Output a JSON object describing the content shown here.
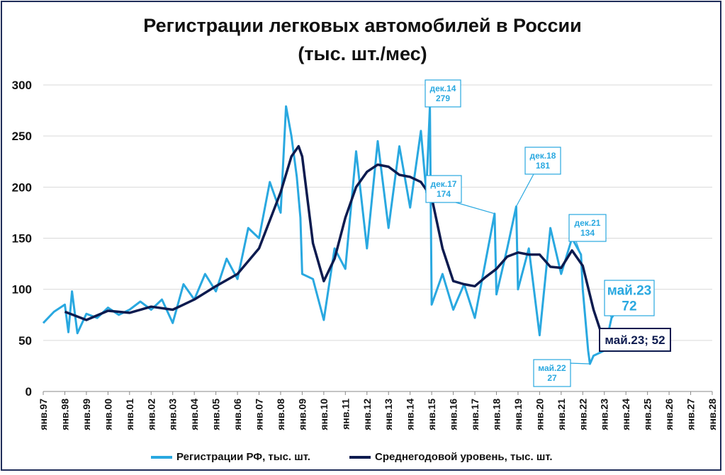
{
  "chart_data": {
    "type": "line",
    "title": "Регистрации легковых автомобилей в России",
    "subtitle": "(тыс. шт./мес)",
    "x_range": [
      "янв.97",
      "янв.28"
    ],
    "x_tick_labels": [
      "янв.97",
      "янв.98",
      "янв.99",
      "янв.00",
      "янв.01",
      "янв.02",
      "янв.03",
      "янв.04",
      "янв.05",
      "янв.06",
      "янв.07",
      "янв.08",
      "янв.09",
      "янв.10",
      "янв.11",
      "янв.12",
      "янв.13",
      "янв.14",
      "янв.15",
      "янв.16",
      "янв.17",
      "янв.18",
      "янв.19",
      "янв.20",
      "янв.21",
      "янв.22",
      "янв.23",
      "янв.24",
      "янв.25",
      "янв.26",
      "янв.27",
      "янв.28"
    ],
    "ylim": [
      0,
      300
    ],
    "y_ticks": [
      0,
      50,
      100,
      150,
      200,
      250,
      300
    ],
    "grid": true,
    "legend_position": "bottom",
    "series": [
      {
        "name": "Регистрации РФ, тыс. шт.",
        "color": "#29a8e0",
        "points": [
          [
            "янв.97",
            67
          ],
          [
            "июл.97",
            78
          ],
          [
            "янв.98",
            85
          ],
          [
            "мар.98",
            58
          ],
          [
            "май.98",
            98
          ],
          [
            "авг.98",
            57
          ],
          [
            "янв.99",
            76
          ],
          [
            "июл.99",
            72
          ],
          [
            "янв.00",
            82
          ],
          [
            "июл.00",
            75
          ],
          [
            "янв.01",
            80
          ],
          [
            "июл.01",
            88
          ],
          [
            "янв.02",
            80
          ],
          [
            "июл.02",
            90
          ],
          [
            "янв.03",
            67
          ],
          [
            "июл.03",
            105
          ],
          [
            "янв.04",
            90
          ],
          [
            "июл.04",
            115
          ],
          [
            "янв.05",
            98
          ],
          [
            "июл.05",
            130
          ],
          [
            "янв.06",
            110
          ],
          [
            "июл.06",
            160
          ],
          [
            "янв.07",
            150
          ],
          [
            "июл.07",
            205
          ],
          [
            "янв.08",
            175
          ],
          [
            "апр.08",
            279
          ],
          [
            "июл.08",
            250
          ],
          [
            "окт.08",
            210
          ],
          [
            "дек.08",
            170
          ],
          [
            "янв.09",
            115
          ],
          [
            "июл.09",
            110
          ],
          [
            "янв.10",
            70
          ],
          [
            "июл.10",
            140
          ],
          [
            "янв.11",
            120
          ],
          [
            "июл.11",
            235
          ],
          [
            "янв.12",
            140
          ],
          [
            "июл.12",
            245
          ],
          [
            "янв.13",
            160
          ],
          [
            "июл.13",
            240
          ],
          [
            "янв.14",
            180
          ],
          [
            "июл.14",
            255
          ],
          [
            "окт.14",
            195
          ],
          [
            "дек.14",
            279
          ],
          [
            "янв.15",
            85
          ],
          [
            "июл.15",
            115
          ],
          [
            "янв.16",
            80
          ],
          [
            "июл.16",
            105
          ],
          [
            "янв.17",
            72
          ],
          [
            "июл.17",
            128
          ],
          [
            "дек.17",
            174
          ],
          [
            "янв.18",
            95
          ],
          [
            "июл.18",
            140
          ],
          [
            "дек.18",
            181
          ],
          [
            "янв.19",
            100
          ],
          [
            "июл.19",
            140
          ],
          [
            "янв.20",
            55
          ],
          [
            "июл.20",
            160
          ],
          [
            "янв.21",
            115
          ],
          [
            "июл.21",
            150
          ],
          [
            "дек.21",
            134
          ],
          [
            "янв.22",
            100
          ],
          [
            "апр.22",
            40
          ],
          [
            "май.22",
            27
          ],
          [
            "июл.22",
            35
          ],
          [
            "янв.23",
            40
          ],
          [
            "май.23",
            72
          ],
          [
            "июл.23",
            77
          ]
        ]
      },
      {
        "name": "Среднегодовой уровень, тыс. шт.",
        "color": "#0d1b4f",
        "points": [
          [
            "янв.98",
            78
          ],
          [
            "янв.99",
            70
          ],
          [
            "янв.00",
            79
          ],
          [
            "янв.01",
            77
          ],
          [
            "янв.02",
            83
          ],
          [
            "янв.03",
            80
          ],
          [
            "янв.04",
            90
          ],
          [
            "янв.05",
            103
          ],
          [
            "янв.06",
            115
          ],
          [
            "янв.07",
            140
          ],
          [
            "янв.08",
            195
          ],
          [
            "июл.08",
            230
          ],
          [
            "ноя.08",
            240
          ],
          [
            "янв.09",
            230
          ],
          [
            "июл.09",
            145
          ],
          [
            "янв.10",
            108
          ],
          [
            "июл.10",
            130
          ],
          [
            "янв.11",
            170
          ],
          [
            "июл.11",
            200
          ],
          [
            "янв.12",
            215
          ],
          [
            "июл.12",
            222
          ],
          [
            "янв.13",
            220
          ],
          [
            "июл.13",
            212
          ],
          [
            "янв.14",
            210
          ],
          [
            "июл.14",
            205
          ],
          [
            "янв.15",
            190
          ],
          [
            "июл.15",
            140
          ],
          [
            "янв.16",
            108
          ],
          [
            "июл.16",
            105
          ],
          [
            "янв.17",
            103
          ],
          [
            "июл.17",
            112
          ],
          [
            "янв.18",
            120
          ],
          [
            "июл.18",
            132
          ],
          [
            "янв.19",
            136
          ],
          [
            "июл.19",
            134
          ],
          [
            "янв.20",
            134
          ],
          [
            "июл.20",
            122
          ],
          [
            "янв.21",
            121
          ],
          [
            "июл.21",
            138
          ],
          [
            "янв.22",
            123
          ],
          [
            "июл.22",
            80
          ],
          [
            "янв.23",
            48
          ],
          [
            "май.23",
            52
          ]
        ]
      }
    ],
    "annotations": [
      {
        "label": "дек.14",
        "value": "279",
        "style": "light"
      },
      {
        "label": "дек.17",
        "value": "174",
        "style": "light"
      },
      {
        "label": "дек.18",
        "value": "181",
        "style": "light"
      },
      {
        "label": "дек.21",
        "value": "134",
        "style": "light"
      },
      {
        "label": "май.22",
        "value": "27",
        "style": "light"
      },
      {
        "label": "май.23",
        "value": "72",
        "style": "large"
      },
      {
        "text": "май.23; 52",
        "style": "dark"
      }
    ]
  }
}
